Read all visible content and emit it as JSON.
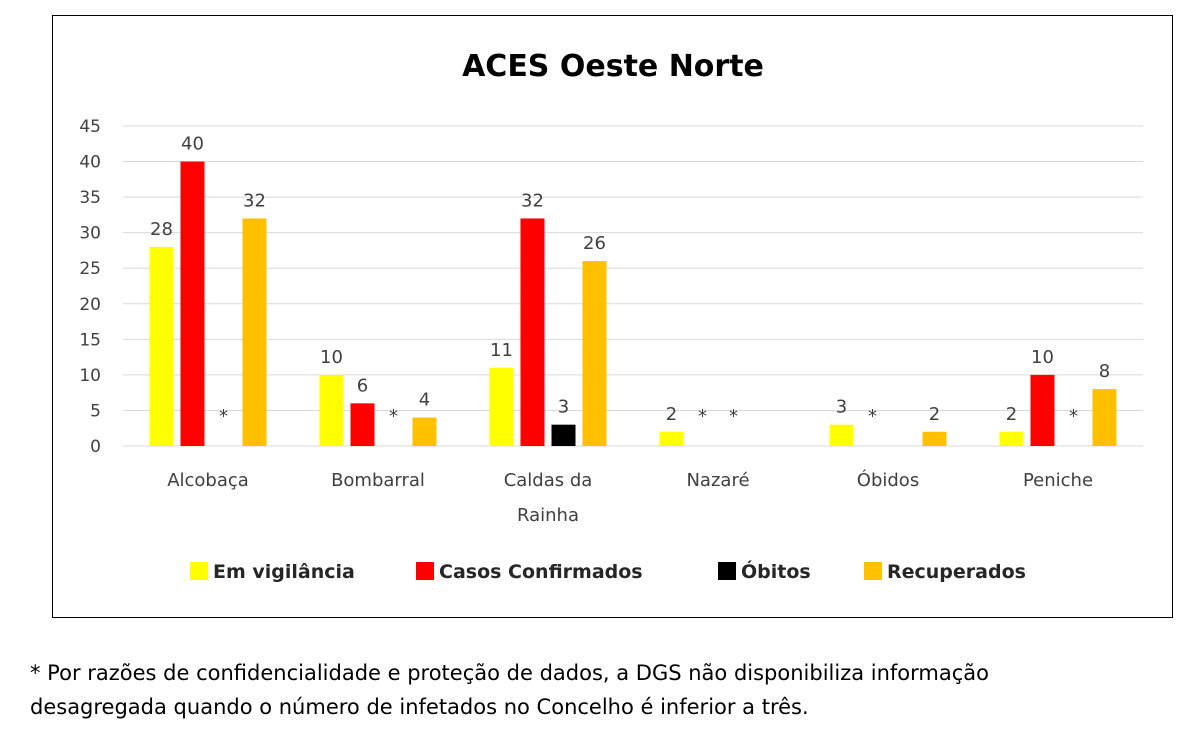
{
  "chart_data": {
    "type": "bar",
    "title": "ACES Oeste Norte",
    "categories": [
      [
        "Alcobaça"
      ],
      [
        "Bombarral"
      ],
      [
        "Caldas da",
        "Rainha"
      ],
      [
        "Nazaré"
      ],
      [
        "Óbidos"
      ],
      [
        "Peniche"
      ]
    ],
    "series": [
      {
        "name": "Em vigilância",
        "color": "#FFFF00",
        "values": [
          28,
          10,
          11,
          2,
          3,
          2
        ],
        "labels": [
          "28",
          "10",
          "11",
          "2",
          "3",
          "2"
        ]
      },
      {
        "name": "Casos Confirmados",
        "color": "#FF0000",
        "values": [
          40,
          6,
          32,
          0,
          0,
          10
        ],
        "labels": [
          "40",
          "6",
          "32",
          "*",
          "*",
          "10"
        ]
      },
      {
        "name": "Óbitos",
        "color": "#000000",
        "values": [
          0,
          0,
          3,
          0,
          0,
          0
        ],
        "labels": [
          "*",
          "*",
          "3",
          "*",
          "",
          "*"
        ]
      },
      {
        "name": "Recuperados",
        "color": "#FFC000",
        "values": [
          32,
          4,
          26,
          0,
          2,
          8
        ],
        "labels": [
          "32",
          "4",
          "26",
          "",
          "2",
          "8"
        ]
      }
    ],
    "yticks": [
      0,
      5,
      10,
      15,
      20,
      25,
      30,
      35,
      40,
      45
    ],
    "ylim": [
      0,
      45
    ],
    "grid": true,
    "legend": "bottom"
  },
  "footnote": {
    "line1": "* Por razões de confidencialidade e proteção de dados, a DGS não disponibiliza informação",
    "line2": "desagregada quando o número de infetados no Concelho é inferior a três."
  }
}
